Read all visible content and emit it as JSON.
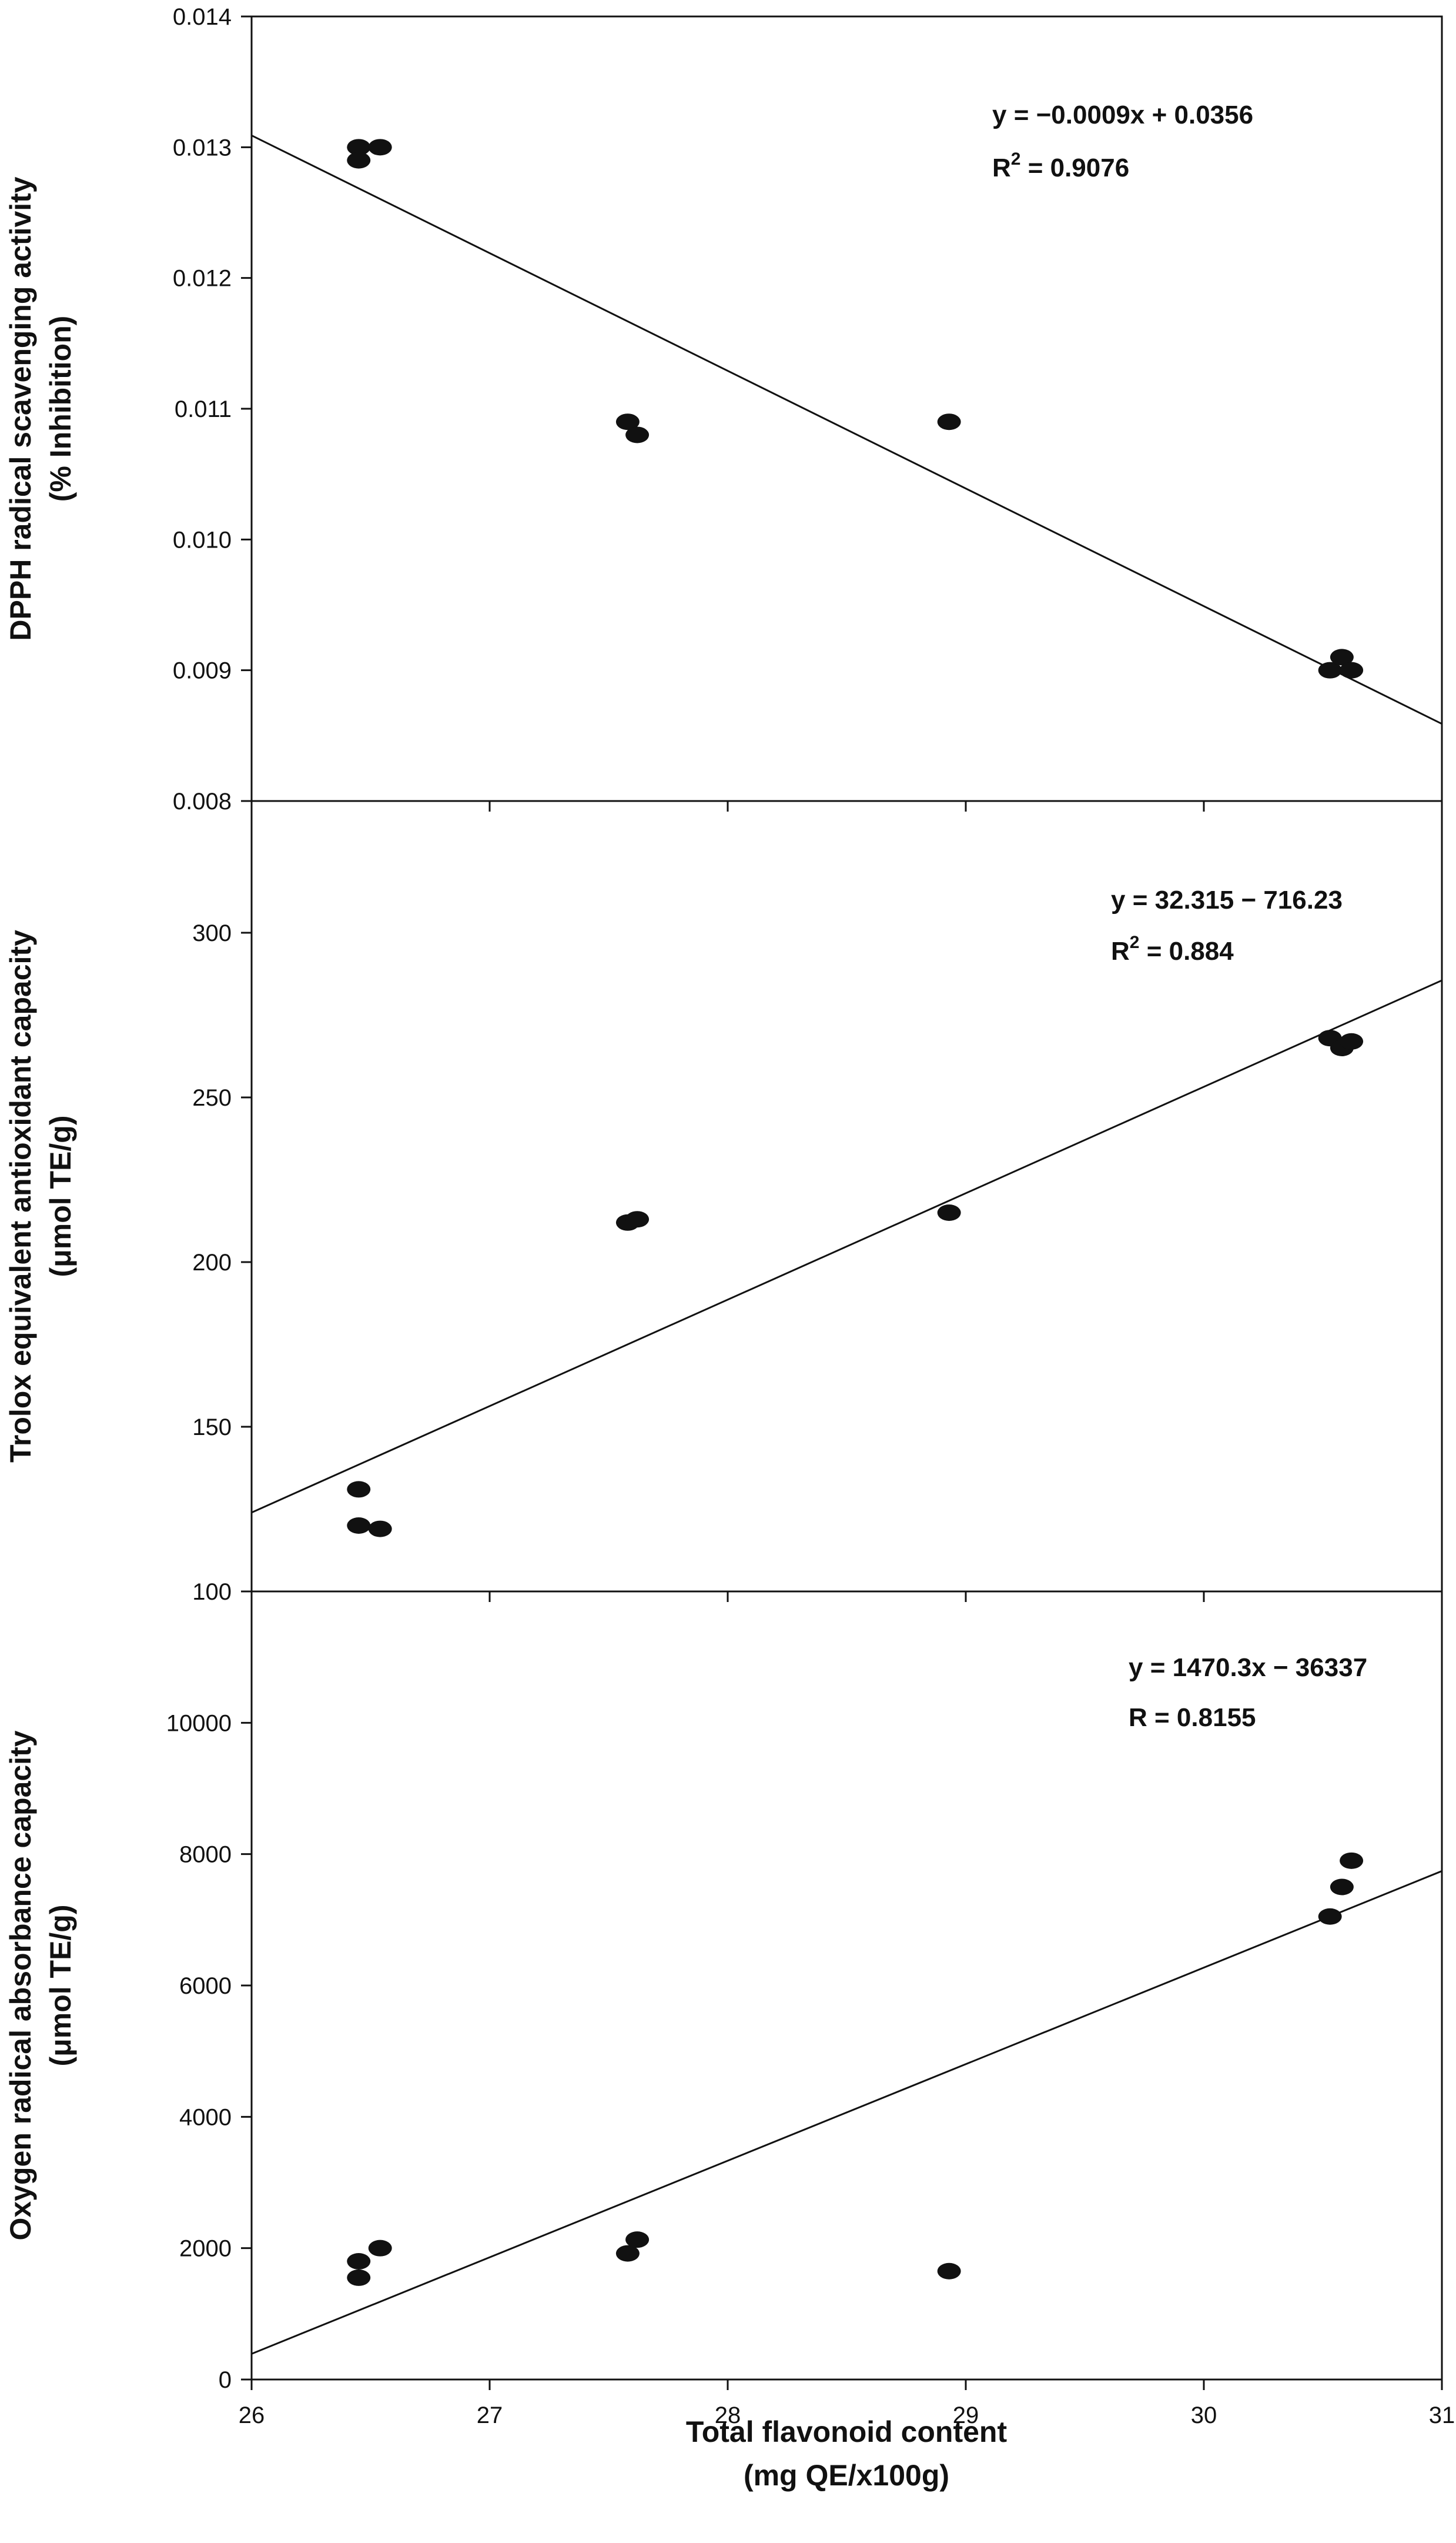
{
  "figure": {
    "xlabel_line1": "Total flavonoid content",
    "xlabel_line2": "(mg QE/x100g)"
  },
  "chart_data": [
    {
      "type": "scatter",
      "ylabel_line1": "DPPH radical scavenging activity",
      "ylabel_line2": "(% Inhibition)",
      "xlim": [
        26,
        31
      ],
      "ylim": [
        0.008,
        0.014
      ],
      "xticks": [
        26,
        27,
        28,
        29,
        30,
        31
      ],
      "yticks": [
        "0.008",
        "0.009",
        "0.010",
        "0.011",
        "0.012",
        "0.013",
        "0.014"
      ],
      "equation": "y = −0.0009x + 0.0356",
      "r_prefix": "R",
      "r_sup": "2",
      "r_value": " = 0.9076",
      "trendline": {
        "x1": 26,
        "y1": 0.01309,
        "x2": 31,
        "y2": 0.00859
      },
      "points": [
        {
          "x": 26.45,
          "y": 0.013
        },
        {
          "x": 26.45,
          "y": 0.0129
        },
        {
          "x": 26.54,
          "y": 0.013
        },
        {
          "x": 27.58,
          "y": 0.0109
        },
        {
          "x": 27.62,
          "y": 0.0108
        },
        {
          "x": 28.93,
          "y": 0.0109
        },
        {
          "x": 30.53,
          "y": 0.009
        },
        {
          "x": 30.58,
          "y": 0.0091
        },
        {
          "x": 30.62,
          "y": 0.009
        }
      ]
    },
    {
      "type": "scatter",
      "ylabel_line1": "Trolox equivalent antioxidant capacity",
      "ylabel_line2": "(μmol TE/g)",
      "xlim": [
        26,
        31
      ],
      "ylim": [
        100,
        340
      ],
      "xticks": [
        26,
        27,
        28,
        29,
        30,
        31
      ],
      "yticks": [
        "100",
        "150",
        "200",
        "250",
        "300"
      ],
      "equation": "y = 32.315 − 716.23",
      "r_prefix": "R",
      "r_sup": "2",
      "r_value": " = 0.884",
      "trendline": {
        "x1": 26,
        "y1": 123.96,
        "x2": 31,
        "y2": 285.54
      },
      "points": [
        {
          "x": 26.45,
          "y": 131
        },
        {
          "x": 26.45,
          "y": 120
        },
        {
          "x": 26.54,
          "y": 119
        },
        {
          "x": 27.58,
          "y": 212
        },
        {
          "x": 27.62,
          "y": 213
        },
        {
          "x": 28.93,
          "y": 215
        },
        {
          "x": 30.53,
          "y": 268
        },
        {
          "x": 30.58,
          "y": 265
        },
        {
          "x": 30.62,
          "y": 267
        }
      ]
    },
    {
      "type": "scatter",
      "ylabel_line1": "Oxygen  radical absorbance capacity",
      "ylabel_line2": "(μmol TE/g)",
      "xlim": [
        26,
        31
      ],
      "ylim": [
        0,
        12000
      ],
      "xticks": [
        26,
        27,
        28,
        29,
        30,
        31
      ],
      "yticks": [
        "0",
        "2000",
        "4000",
        "6000",
        "8000",
        "10000"
      ],
      "equation": "y = 1470.3x − 36337",
      "r_prefix": "R",
      "r_sup": "",
      "r_value": " = 0.8155",
      "trendline": {
        "x1": 26,
        "y1": 390.8,
        "x2": 31,
        "y2": 7742.3
      },
      "points": [
        {
          "x": 26.45,
          "y": 1800
        },
        {
          "x": 26.45,
          "y": 1550
        },
        {
          "x": 26.54,
          "y": 2000
        },
        {
          "x": 27.58,
          "y": 1920
        },
        {
          "x": 27.62,
          "y": 2130
        },
        {
          "x": 28.93,
          "y": 1650
        },
        {
          "x": 30.53,
          "y": 7050
        },
        {
          "x": 30.58,
          "y": 7500
        },
        {
          "x": 30.62,
          "y": 7900
        }
      ]
    }
  ]
}
